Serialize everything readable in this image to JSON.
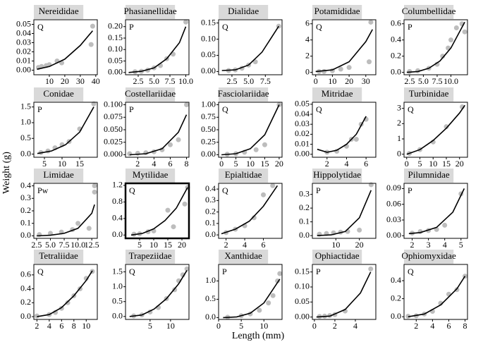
{
  "x_label": "Length (mm)",
  "y_label": "Weight (g)",
  "point_color": "#bdbdbd",
  "line_color": "#000000",
  "title_box_color": "#d9d9d9",
  "chart_data": [
    {
      "type": "scatter",
      "title": "Nereididae",
      "annotation": "Q",
      "xlim": [
        0,
        41
      ],
      "ylim": [
        -0.005,
        0.055
      ],
      "xticks": [
        10,
        20,
        30,
        40
      ],
      "yticks": [
        {
          "value": 0,
          "label": "0.00"
        },
        0.01,
        0.02,
        0.03,
        0.04,
        0.05
      ],
      "x": [
        3,
        5,
        8,
        10,
        15,
        18,
        37,
        38
      ],
      "y": [
        0.003,
        0.004,
        0.005,
        0.006,
        0.01,
        0.008,
        0.028,
        0.048
      ],
      "fit_x": [
        2,
        10,
        20,
        30,
        38
      ],
      "fit_y": [
        0.001,
        0.004,
        0.012,
        0.027,
        0.043
      ]
    },
    {
      "type": "scatter",
      "title": "Phasianellidae",
      "annotation": "P",
      "xlim": [
        0.5,
        10.5
      ],
      "ylim": [
        -0.01,
        0.23
      ],
      "xticks": [
        2.5,
        {
          "value": 5,
          "label": "5.0"
        },
        7.5,
        {
          "value": 10,
          "label": "10.0"
        }
      ],
      "yticks": [
        {
          "value": 0,
          "label": "0.00"
        },
        0.05,
        {
          "value": 0.1,
          "label": "0.10"
        },
        0.15,
        {
          "value": 0.2,
          "label": "0.20"
        }
      ],
      "x": [
        2,
        3,
        4,
        5,
        6,
        7,
        8,
        10
      ],
      "y": [
        0.003,
        0.005,
        0.01,
        0.02,
        0.03,
        0.06,
        0.08,
        0.22
      ],
      "fit_x": [
        1,
        3,
        5,
        7,
        9,
        10
      ],
      "fit_y": [
        0,
        0.005,
        0.02,
        0.06,
        0.13,
        0.2
      ]
    },
    {
      "type": "scatter",
      "title": "Dialidae",
      "annotation": "Q",
      "xlim": [
        0.5,
        10
      ],
      "ylim": [
        -0.01,
        0.16
      ],
      "xticks": [
        2.5,
        {
          "value": 5,
          "label": "5.0"
        },
        7.5
      ],
      "yticks": [
        {
          "value": 0,
          "label": "0.00"
        },
        0.05,
        {
          "value": 0.1,
          "label": "0.10"
        },
        0.15
      ],
      "x": [
        2,
        3,
        4,
        5,
        6,
        9.5
      ],
      "y": [
        0.003,
        0.005,
        0.01,
        0.02,
        0.03,
        0.14
      ],
      "fit_x": [
        1,
        3,
        5,
        7,
        9.5
      ],
      "fit_y": [
        0.003,
        0.005,
        0.02,
        0.06,
        0.14
      ]
    },
    {
      "type": "scatter",
      "title": "Potamididae",
      "annotation": "Q",
      "xlim": [
        -2,
        36
      ],
      "ylim": [
        -0.3,
        6.5
      ],
      "xticks": [
        0,
        10,
        20,
        30
      ],
      "yticks": [
        0,
        2,
        4,
        6
      ],
      "x": [
        2,
        5,
        10,
        15,
        20,
        32,
        33
      ],
      "y": [
        0.1,
        0.1,
        0.2,
        0.4,
        0.6,
        1.3,
        6.2
      ],
      "fit_x": [
        0,
        10,
        20,
        30,
        34
      ],
      "fit_y": [
        0.1,
        0.3,
        1.3,
        3.8,
        5.3
      ]
    },
    {
      "type": "scatter",
      "title": "Columbellidae",
      "annotation": "P",
      "xlim": [
        1.5,
        13
      ],
      "ylim": [
        -0.03,
        0.65
      ],
      "xticks": [
        2.5,
        {
          "value": 5,
          "label": "5.0"
        },
        7.5,
        {
          "value": 10,
          "label": "10.0"
        }
      ],
      "yticks": [
        {
          "value": 0,
          "label": "0.0"
        },
        0.2,
        0.4,
        0.6
      ],
      "x": [
        2.5,
        4,
        6,
        7.5,
        8.5,
        9.5,
        10,
        11,
        12,
        12.5
      ],
      "y": [
        0.01,
        0.02,
        0.05,
        0.1,
        0.2,
        0.3,
        0.4,
        0.55,
        0.6,
        0.5
      ],
      "fit_x": [
        2,
        4,
        6,
        8,
        10,
        12.5
      ],
      "fit_y": [
        0,
        0.01,
        0.05,
        0.14,
        0.3,
        0.62
      ]
    },
    {
      "type": "scatter",
      "title": "Conidae",
      "annotation": "P",
      "xlim": [
        2,
        20
      ],
      "ylim": [
        -0.1,
        1.65
      ],
      "xticks": [
        5,
        10,
        15
      ],
      "yticks": [
        {
          "value": 0,
          "label": "0.0"
        },
        0.5,
        {
          "value": 1,
          "label": "1.0"
        },
        1.5
      ],
      "x": [
        4,
        6,
        8,
        10,
        12,
        15,
        19
      ],
      "y": [
        0.05,
        0.1,
        0.2,
        0.3,
        0.4,
        0.8,
        1.6
      ],
      "fit_x": [
        3,
        7,
        11,
        15,
        19
      ],
      "fit_y": [
        0.02,
        0.1,
        0.3,
        0.7,
        1.5
      ]
    },
    {
      "type": "scatter",
      "title": "Costellariidae",
      "annotation": "P",
      "xlim": [
        0.5,
        8.3
      ],
      "ylim": [
        -0.005,
        0.105
      ],
      "xticks": [
        2,
        4,
        6,
        8
      ],
      "yticks": [
        {
          "value": 0,
          "label": "0.000"
        },
        0.025,
        {
          "value": 0.05,
          "label": "0.050"
        },
        0.075,
        {
          "value": 0.1,
          "label": "0.100"
        }
      ],
      "x": [
        1,
        2,
        3,
        4,
        5,
        6,
        7,
        8
      ],
      "y": [
        0.002,
        0.003,
        0.004,
        0.006,
        0.01,
        0.02,
        0.03,
        0.1
      ],
      "fit_x": [
        1,
        3,
        5,
        7,
        8
      ],
      "fit_y": [
        0,
        0.002,
        0.012,
        0.045,
        0.08
      ]
    },
    {
      "type": "scatter",
      "title": "Fasciolariidae",
      "annotation": "Q",
      "xlim": [
        -1,
        21
      ],
      "ylim": [
        -0.05,
        1.05
      ],
      "xticks": [
        0,
        5,
        10,
        15,
        20
      ],
      "yticks": [
        {
          "value": 0,
          "label": "0.00"
        },
        0.25,
        {
          "value": 0.5,
          "label": "0.50"
        },
        0.75,
        {
          "value": 1,
          "label": "1.00"
        }
      ],
      "x": [
        2,
        5,
        8,
        12,
        15,
        20
      ],
      "y": [
        0.01,
        0.02,
        0.05,
        0.1,
        0.2,
        1.0
      ],
      "fit_x": [
        0,
        5,
        10,
        15,
        20
      ],
      "fit_y": [
        0,
        0.02,
        0.12,
        0.4,
        1.0
      ]
    },
    {
      "type": "scatter",
      "title": "Mitridae",
      "annotation": "Q",
      "xlim": [
        0.5,
        7
      ],
      "ylim": [
        -0.003,
        0.052
      ],
      "xticks": [
        2,
        4,
        6
      ],
      "yticks": [
        {
          "value": 0,
          "label": "0.00"
        },
        0.01,
        0.02,
        0.03,
        0.04,
        0.05
      ],
      "x": [
        2,
        3,
        4,
        4.5,
        5,
        5.5,
        6
      ],
      "y": [
        0.002,
        0.003,
        0.008,
        0.015,
        0.015,
        0.03,
        0.035
      ],
      "fit_x": [
        1,
        2,
        3,
        4,
        5,
        6
      ],
      "fit_y": [
        0.005,
        0.002,
        0.004,
        0.01,
        0.02,
        0.038
      ]
    },
    {
      "type": "scatter",
      "title": "Turbinidae",
      "annotation": "Q",
      "xlim": [
        -1,
        23
      ],
      "ylim": [
        -0.2,
        3.4
      ],
      "xticks": [
        0,
        5,
        10,
        15,
        20
      ],
      "yticks": [
        0,
        1,
        2,
        3
      ],
      "x": [
        1,
        5,
        10,
        15,
        21
      ],
      "y": [
        0.05,
        0.3,
        0.8,
        1.8,
        3.1
      ],
      "fit_x": [
        0,
        5,
        10,
        15,
        20,
        22
      ],
      "fit_y": [
        0,
        0.3,
        0.9,
        1.7,
        2.7,
        3.2
      ]
    },
    {
      "type": "scatter",
      "title": "Limidae",
      "annotation": "Pw",
      "xlim": [
        2,
        13.5
      ],
      "ylim": [
        -0.02,
        0.42
      ],
      "xticks": [
        2.5,
        {
          "value": 5,
          "label": "5.0"
        },
        7.5,
        {
          "value": 10,
          "label": "10.0"
        },
        12.5
      ],
      "yticks": [
        {
          "value": 0,
          "label": "0.0"
        },
        0.1,
        0.2,
        0.3,
        0.4
      ],
      "x": [
        3,
        5,
        7,
        9,
        10,
        12,
        13,
        13
      ],
      "y": [
        0.01,
        0.02,
        0.03,
        0.05,
        0.1,
        0.06,
        0.35,
        0.4
      ],
      "fit_x": [
        2.5,
        5,
        7.5,
        10,
        12.5,
        13
      ],
      "fit_y": [
        0,
        0.005,
        0.02,
        0.06,
        0.18,
        0.25
      ]
    },
    {
      "type": "scatter",
      "title": "Mytilidae",
      "annotation": "Q",
      "highlight": true,
      "xlim": [
        0,
        22.5
      ],
      "ylim": [
        -0.08,
        1.25
      ],
      "xticks": [
        5,
        10,
        15,
        20
      ],
      "yticks": [
        {
          "value": 0,
          "label": "0.0"
        },
        0.4,
        0.8,
        1.2
      ],
      "x": [
        3,
        5,
        8,
        10,
        15,
        17,
        21,
        22
      ],
      "y": [
        0.02,
        0.03,
        0.08,
        0.1,
        0.6,
        0.2,
        0.75,
        1.15
      ],
      "fit_x": [
        2,
        6,
        10,
        14,
        18,
        22
      ],
      "fit_y": [
        0,
        0.04,
        0.15,
        0.35,
        0.65,
        1.15
      ]
    },
    {
      "type": "scatter",
      "title": "Epialtidae",
      "annotation": "Q",
      "xlim": [
        1.2,
        8
      ],
      "ylim": [
        -0.03,
        0.45
      ],
      "xticks": [
        2,
        4,
        6
      ],
      "yticks": [
        {
          "value": 0,
          "label": "0.0"
        },
        0.1,
        0.2,
        0.3,
        0.4
      ],
      "x": [
        2,
        3,
        4,
        5,
        6,
        7
      ],
      "y": [
        0.02,
        0.05,
        0.08,
        0.15,
        0.35,
        0.43
      ],
      "fit_x": [
        1.5,
        3,
        4.5,
        6,
        7.5
      ],
      "fit_y": [
        0.01,
        0.05,
        0.12,
        0.25,
        0.43
      ]
    },
    {
      "type": "scatter",
      "title": "Hippolytidae",
      "annotation": "P",
      "xlim": [
        0,
        27
      ],
      "ylim": [
        -0.02,
        0.38
      ],
      "xticks": [
        10,
        20
      ],
      "yticks": [
        {
          "value": 0,
          "label": "0.0"
        },
        0.1,
        0.2,
        0.3
      ],
      "x": [
        3,
        6,
        9,
        12,
        15,
        20,
        25
      ],
      "y": [
        0.01,
        0.015,
        0.02,
        0.025,
        0.03,
        0.04,
        0.37
      ],
      "fit_x": [
        2,
        8,
        14,
        20,
        25
      ],
      "fit_y": [
        0,
        0.005,
        0.03,
        0.13,
        0.33
      ]
    },
    {
      "type": "scatter",
      "title": "Pilumnidae",
      "annotation": "P",
      "xlim": [
        1.5,
        5.4
      ],
      "ylim": [
        -0.005,
        0.1
      ],
      "xticks": [
        2,
        3,
        4,
        5
      ],
      "yticks": [
        {
          "value": 0,
          "label": "0.00"
        },
        0.03,
        0.06,
        0.09
      ],
      "x": [
        2,
        2.5,
        3,
        3.5,
        4,
        5
      ],
      "y": [
        0.005,
        0.008,
        0.01,
        0.012,
        0.02,
        0.08
      ],
      "fit_x": [
        1.8,
        2.5,
        3.5,
        4.5,
        5.2
      ],
      "fit_y": [
        0.004,
        0.006,
        0.016,
        0.045,
        0.09
      ]
    },
    {
      "type": "scatter",
      "title": "Tetraliidae",
      "annotation": "Q",
      "xlim": [
        1.5,
        11.8
      ],
      "ylim": [
        -0.04,
        0.75
      ],
      "xticks": [
        2,
        4,
        6,
        8,
        10
      ],
      "yticks": [
        {
          "value": 0,
          "label": "0.0"
        },
        0.2,
        0.4,
        0.6
      ],
      "x": [
        2,
        4,
        5,
        6,
        7,
        8,
        9,
        10,
        11
      ],
      "y": [
        0.01,
        0.03,
        0.06,
        0.12,
        0.2,
        0.3,
        0.4,
        0.55,
        0.65
      ],
      "fit_x": [
        2,
        4,
        6,
        8,
        10,
        11
      ],
      "fit_y": [
        0,
        0.03,
        0.13,
        0.3,
        0.52,
        0.66
      ]
    },
    {
      "type": "scatter",
      "title": "Trapeziidae",
      "annotation": "Q",
      "xlim": [
        -1,
        14.5
      ],
      "ylim": [
        -0.1,
        1.75
      ],
      "xticks": [
        5,
        10
      ],
      "yticks": [
        {
          "value": 0,
          "label": "0.0"
        },
        0.5,
        {
          "value": 1,
          "label": "1.0"
        },
        1.5
      ],
      "x": [
        1,
        3,
        5,
        7,
        9,
        11,
        12,
        13,
        14
      ],
      "y": [
        0.02,
        0.05,
        0.15,
        0.3,
        0.6,
        0.9,
        1.2,
        1.4,
        1.6
      ],
      "fit_x": [
        0,
        3,
        6,
        9,
        12,
        14
      ],
      "fit_y": [
        0,
        0.05,
        0.25,
        0.6,
        1.1,
        1.55
      ]
    },
    {
      "type": "scatter",
      "title": "Xanthidae",
      "annotation": "P",
      "xlim": [
        0,
        14
      ],
      "ylim": [
        -0.05,
        1.45
      ],
      "xticks": [
        0,
        5,
        10
      ],
      "yticks": [
        {
          "value": 0,
          "label": "0.0"
        },
        0.5,
        {
          "value": 1,
          "label": "1.0"
        }
      ],
      "x": [
        2,
        5,
        7,
        9,
        11,
        12,
        13,
        13.5
      ],
      "y": [
        0.01,
        0.05,
        0.1,
        0.2,
        0.4,
        0.6,
        1.0,
        1.2
      ],
      "fit_x": [
        1,
        4,
        7,
        10,
        13.5
      ],
      "fit_y": [
        0,
        0.02,
        0.12,
        0.4,
        1.05
      ]
    },
    {
      "type": "scatter",
      "title": "Ophiactidae",
      "annotation": "P",
      "xlim": [
        -0.2,
        6
      ],
      "ylim": [
        -0.008,
        0.175
      ],
      "xticks": [
        0,
        2,
        4
      ],
      "yticks": [
        {
          "value": 0,
          "label": "0.00"
        },
        0.05,
        {
          "value": 0.1,
          "label": "0.10"
        },
        0.15
      ],
      "x": [
        0.5,
        1,
        1.5,
        2,
        3,
        5.5
      ],
      "y": [
        0.002,
        0.003,
        0.005,
        0.008,
        0.02,
        0.16
      ],
      "fit_x": [
        0.2,
        1.5,
        3,
        4.5,
        5.5
      ],
      "fit_y": [
        0,
        0.003,
        0.025,
        0.08,
        0.15
      ]
    },
    {
      "type": "scatter",
      "title": "Ophiomyxidae",
      "annotation": "Q",
      "xlim": [
        0.5,
        8.3
      ],
      "ylim": [
        -0.03,
        0.58
      ],
      "xticks": [
        2,
        4,
        6,
        8
      ],
      "yticks": [
        {
          "value": 0,
          "label": "0.0"
        },
        0.2,
        0.4
      ],
      "x": [
        1,
        2,
        3,
        4,
        5,
        6,
        7,
        8
      ],
      "y": [
        0.005,
        0.01,
        0.03,
        0.06,
        0.15,
        0.25,
        0.3,
        0.45
      ],
      "fit_x": [
        1,
        3,
        5,
        7,
        8
      ],
      "fit_y": [
        0,
        0.03,
        0.13,
        0.31,
        0.45
      ]
    }
  ]
}
